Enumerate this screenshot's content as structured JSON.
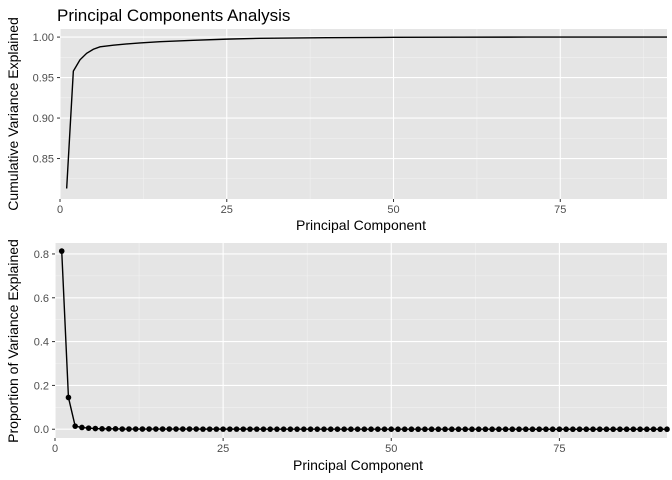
{
  "title": "Principal Components Analysis",
  "chart_data": [
    {
      "type": "line",
      "xlabel": "Principal Component",
      "ylabel": "Cumulative Variance Explained",
      "xlim": [
        0,
        91
      ],
      "ylim": [
        0.8,
        1.01
      ],
      "x_ticks": [
        0,
        25,
        50,
        75
      ],
      "y_ticks": [
        0.85,
        0.9,
        0.95,
        1.0
      ],
      "y_tick_labels": [
        "0.85",
        "0.90",
        "0.95",
        "1.00"
      ],
      "grid": true,
      "points": false,
      "series": [
        {
          "x": [
            1,
            2,
            3,
            4,
            5,
            6,
            8,
            10,
            12,
            15,
            20,
            25,
            30,
            40,
            50,
            60,
            70,
            80,
            91
          ],
          "values": [
            0.813,
            0.958,
            0.972,
            0.98,
            0.985,
            0.988,
            0.99,
            0.9915,
            0.9928,
            0.9943,
            0.996,
            0.9975,
            0.9985,
            0.9993,
            0.9997,
            0.9999,
            1.0,
            1.0,
            1.0
          ]
        }
      ]
    },
    {
      "type": "line",
      "xlabel": "Principal Component",
      "ylabel": "Proportion of Variance Explained",
      "xlim": [
        0,
        91
      ],
      "ylim": [
        -0.04,
        0.85
      ],
      "x_ticks": [
        0,
        25,
        50,
        75
      ],
      "y_ticks": [
        0.0,
        0.2,
        0.4,
        0.6,
        0.8
      ],
      "y_tick_labels": [
        "0.0",
        "0.2",
        "0.4",
        "0.6",
        "0.8"
      ],
      "grid": true,
      "points": true,
      "series": [
        {
          "x": [
            1,
            2,
            3,
            4,
            5,
            6,
            7,
            8,
            9,
            10,
            11,
            12,
            13,
            14,
            15,
            16,
            17,
            18,
            19,
            20,
            21,
            22,
            23,
            24,
            25,
            26,
            27,
            28,
            29,
            30,
            31,
            32,
            33,
            34,
            35,
            36,
            37,
            38,
            39,
            40,
            41,
            42,
            43,
            44,
            45,
            46,
            47,
            48,
            49,
            50,
            51,
            52,
            53,
            54,
            55,
            56,
            57,
            58,
            59,
            60,
            61,
            62,
            63,
            64,
            65,
            66,
            67,
            68,
            69,
            70,
            71,
            72,
            73,
            74,
            75,
            76,
            77,
            78,
            79,
            80,
            81,
            82,
            83,
            84,
            85,
            86,
            87,
            88,
            89,
            90,
            91
          ],
          "values": [
            0.813,
            0.145,
            0.014,
            0.008,
            0.005,
            0.003,
            0.002,
            0.002,
            0.002,
            0.001,
            0.001,
            0.001,
            0.001,
            0.001,
            0.001,
            0.001,
            0.001,
            0.001,
            0.001,
            0.001,
            0.001,
            0.0005,
            0.0005,
            0.0005,
            0.0005,
            0.0005,
            0.0005,
            0.0005,
            0.0005,
            0.0005,
            0.0003,
            0.0003,
            0.0003,
            0.0003,
            0.0003,
            0.0003,
            0.0003,
            0.0003,
            0.0003,
            0.0003,
            0.0002,
            0.0002,
            0.0002,
            0.0002,
            0.0002,
            0.0002,
            0.0002,
            0.0002,
            0.0002,
            0.0002,
            0.0001,
            0.0001,
            0.0001,
            0.0001,
            0.0001,
            0.0001,
            0.0001,
            0.0001,
            0.0001,
            0.0001,
            0.0001,
            0.0001,
            0.0001,
            0.0001,
            0.0001,
            0.0001,
            0.0001,
            0.0001,
            0.0001,
            0.0001,
            0.0,
            0.0,
            0.0,
            0.0,
            0.0,
            0.0,
            0.0,
            0.0,
            0.0,
            0.0,
            0.0,
            0.0,
            0.0,
            0.0,
            0.0,
            0.0,
            0.0,
            0.0,
            0.0,
            0.0,
            0.0
          ]
        }
      ]
    }
  ]
}
